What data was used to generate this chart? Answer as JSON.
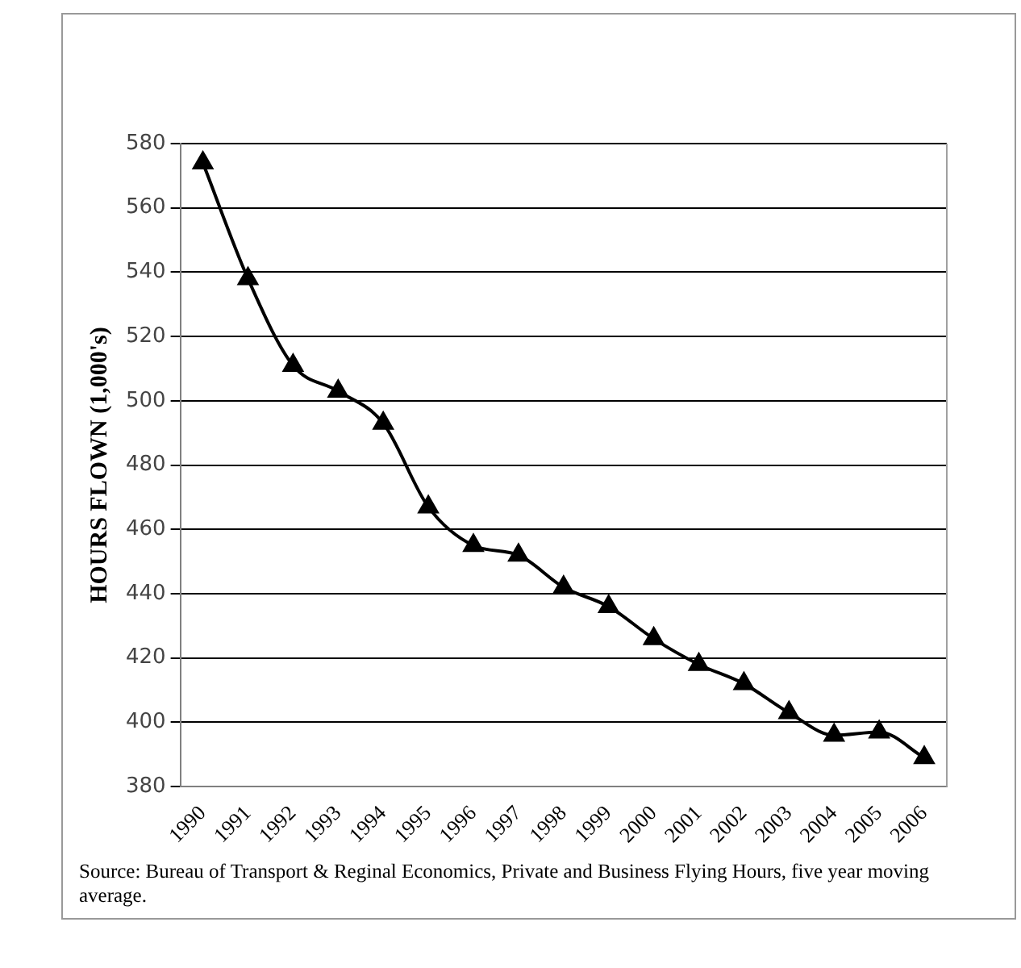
{
  "chart_data": {
    "type": "line",
    "ylabel": "HOURS FLOWN (1,000's)",
    "categories": [
      "1990",
      "1991",
      "1992",
      "1993",
      "1994",
      "1995",
      "1996",
      "1997",
      "1998",
      "1999",
      "2000",
      "2001",
      "2002",
      "2003",
      "2004",
      "2005",
      "2006"
    ],
    "series": [
      {
        "color": "#000000",
        "values": [
          574,
          538,
          511,
          503,
          493,
          467,
          455,
          452,
          442,
          436,
          426,
          418,
          412,
          403,
          396,
          397,
          389
        ]
      }
    ],
    "ylim": [
      380,
      580
    ],
    "yticks": [
      380,
      400,
      420,
      440,
      460,
      480,
      500,
      520,
      540,
      560,
      580
    ],
    "grid": "y",
    "legend": false,
    "marker": "triangle",
    "line_style": "solid",
    "annotations": [
      "Source: Bureau of Transport & Reginal Economics, Private and Business Flying Hours, five year moving average."
    ]
  }
}
